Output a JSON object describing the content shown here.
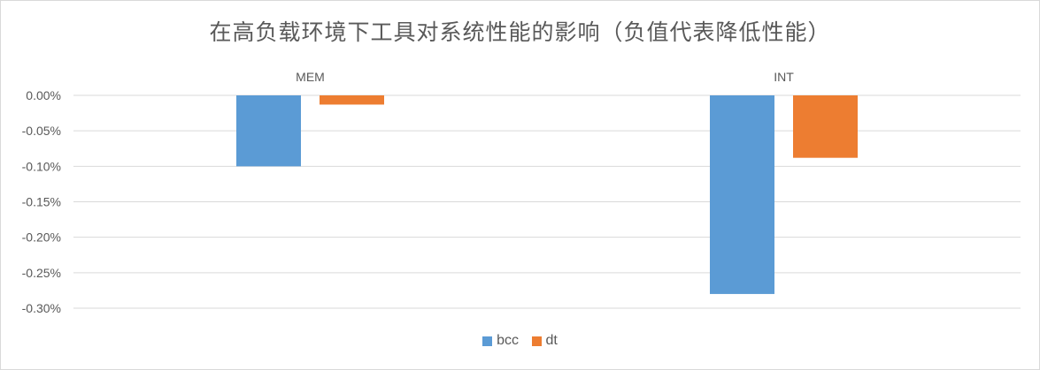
{
  "chart_data": {
    "type": "bar",
    "title": "在高负载环境下工具对系统性能的影响（负值代表降低性能）",
    "categories": [
      "MEM",
      "INT"
    ],
    "series": [
      {
        "name": "bcc",
        "color": "#5b9bd5",
        "values": [
          -0.1,
          -0.28
        ]
      },
      {
        "name": "dt",
        "color": "#ed7d31",
        "values": [
          -0.013,
          -0.088
        ]
      }
    ],
    "ylim": [
      -0.3,
      0.0
    ],
    "yticks": [
      "0.00%",
      "-0.05%",
      "-0.10%",
      "-0.15%",
      "-0.20%",
      "-0.25%",
      "-0.30%"
    ],
    "value_unit": "%",
    "xlabel": "",
    "ylabel": "",
    "grid": true,
    "legend_position": "bottom"
  }
}
